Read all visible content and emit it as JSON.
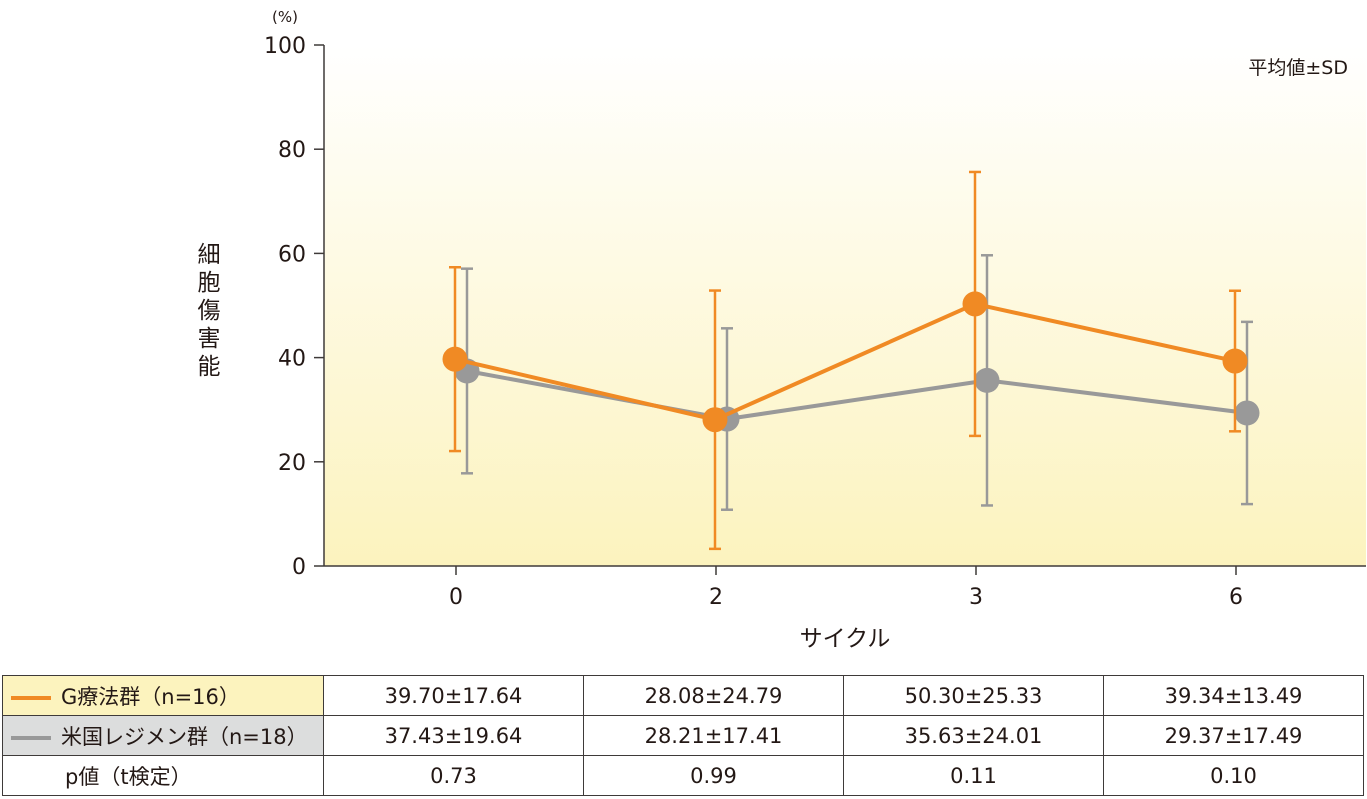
{
  "chart_data": {
    "type": "line",
    "ylabel": "細胞傷害能",
    "yunit": "(%)",
    "xlabel": "サイクル",
    "note": "平均値±SD",
    "categories": [
      "0",
      "2",
      "3",
      "6"
    ],
    "ylim": [
      0,
      100
    ],
    "yticks": [
      0,
      20,
      40,
      60,
      80,
      100
    ],
    "grid": false,
    "series": [
      {
        "name": "G療法群（n=16）",
        "color": "#F08A24",
        "values": [
          39.7,
          28.08,
          50.3,
          39.34
        ],
        "sd": [
          17.64,
          24.79,
          25.33,
          13.49
        ]
      },
      {
        "name": "米国レジメン群（n=18）",
        "color": "#999999",
        "values": [
          37.43,
          28.21,
          35.63,
          29.37
        ],
        "sd": [
          19.64,
          17.41,
          24.01,
          17.49
        ]
      }
    ]
  },
  "table": {
    "rows": [
      {
        "label": "G療法群（n=16）",
        "cells": [
          "39.70±17.64",
          "28.08±24.79",
          "50.30±25.33",
          "39.34±13.49"
        ]
      },
      {
        "label": "米国レジメン群（n=18）",
        "cells": [
          "37.43±19.64",
          "28.21±17.41",
          "35.63±24.01",
          "29.37±17.49"
        ]
      },
      {
        "label": "p値（t検定）",
        "cells": [
          "0.73",
          "0.99",
          "0.11",
          "0.10"
        ]
      }
    ]
  }
}
